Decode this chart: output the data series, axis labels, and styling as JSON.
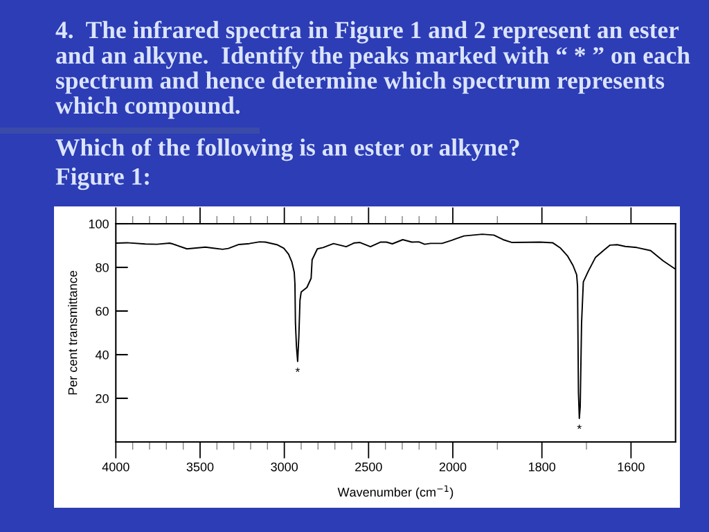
{
  "chart_data": [
    {
      "type": "line",
      "title": "4.  The infrared spectra in Figure 1 and 2 represent an ester and an alkyne.  Identify the peaks marked with “ * ” on each spectrum and hence determine which spectrum represents which compound.",
      "subtitle": "Which of the following is an ester or alkyne?",
      "xlabel": "Wavenumber (cm$^{−1}$)",
      "ylabel": "Per cent transmittance",
      "annotations": [
        "Figure 1:",
        {
          "text": "*",
          "x": 2921,
          "y": 36.9
        }
      ],
      "x": [
        4000,
        3934,
        3825,
        3756,
        3681,
        3660,
        3578,
        3468,
        3421,
        3366,
        3332,
        3270,
        3208,
        3147,
        3112,
        3044,
        3003,
        2975,
        2955,
        2941,
        2937,
        2934,
        2928,
        2921,
        2914,
        2907,
        2900,
        2866,
        2841,
        2835,
        2804,
        2770,
        2708,
        2633,
        2585,
        2551,
        2489,
        2428,
        2394,
        2359,
        2297,
        2243,
        2202,
        2167,
        2133,
        2064,
        2003,
        2000
      ],
      "series": [
        {
          "color": "#000000",
          "values": [
            91.1,
            91.3,
            90.7,
            90.6,
            91.1,
            90.7,
            88.5,
            89.3,
            88.8,
            88.3,
            88.7,
            90.5,
            90.9,
            91.7,
            91.6,
            90.4,
            88.8,
            86.1,
            82.4,
            77.7,
            72.4,
            54.4,
            43.8,
            36.9,
            48,
            65,
            68.7,
            70.8,
            75,
            83.5,
            88.5,
            89.1,
            90.9,
            89.5,
            91.2,
            91.4,
            89.5,
            91.6,
            91.6,
            90.8,
            92.7,
            91.6,
            91.7,
            90.6,
            91,
            91,
            92.5,
            92.6
          ]
        }
      ],
      "xlim": [
        4000,
        2000
      ],
      "xticks": [
        4000,
        {
          "value": 3900,
          "label": null
        },
        {
          "value": 3800,
          "label": null
        },
        {
          "value": 3700,
          "label": null
        },
        {
          "value": 3600,
          "label": null
        },
        3500,
        {
          "value": 3400,
          "label": null
        },
        {
          "value": 3300,
          "label": null
        },
        {
          "value": 3200,
          "label": null
        },
        {
          "value": 3100,
          "label": null
        },
        3000,
        {
          "value": 2900,
          "label": null
        },
        {
          "value": 2800,
          "label": null
        },
        {
          "value": 2700,
          "label": null
        },
        {
          "value": 2600,
          "label": null
        },
        2500,
        {
          "value": 2400,
          "label": null
        },
        {
          "value": 2300,
          "label": null
        },
        {
          "value": 2200,
          "label": null
        },
        {
          "value": 2100,
          "label": null
        },
        2000
      ],
      "ylim": [
        0,
        100
      ],
      "yticks": [
        20,
        40,
        60,
        80,
        100
      ],
      "marker": "none",
      "line_style": "solid"
    },
    {
      "type": "line",
      "annotations": [
        {
          "text": "*",
          "x": 1716,
          "y": 10.8
        }
      ],
      "x": [
        2000,
        1975,
        1934,
        1908,
        1887,
        1867,
        1804,
        1776,
        1758,
        1742,
        1730,
        1722,
        1720,
        1718,
        1716,
        1714,
        1711,
        1707,
        1696,
        1680,
        1662,
        1647,
        1631,
        1613,
        1587,
        1556,
        1528,
        1501
      ],
      "series": [
        {
          "color": "#000000",
          "values": [
            92.6,
            94.4,
            95.2,
            94.8,
            92.7,
            91.4,
            91.6,
            91.3,
            88.8,
            85.1,
            80.8,
            76.6,
            71.3,
            22.6,
            10.8,
            16.3,
            54.4,
            73.4,
            78.2,
            84.5,
            87.7,
            90.2,
            90.4,
            89.6,
            89.1,
            87.7,
            83,
            79.3
          ]
        }
      ],
      "xlim": [
        2000,
        1500
      ],
      "xticks": [
        {
          "value": 1900,
          "label": null
        },
        1800,
        {
          "value": 1700,
          "label": null
        },
        1600
      ],
      "ylim": [
        0,
        100
      ],
      "tick_labels": "x",
      "marker": "none",
      "line_style": "solid"
    }
  ]
}
